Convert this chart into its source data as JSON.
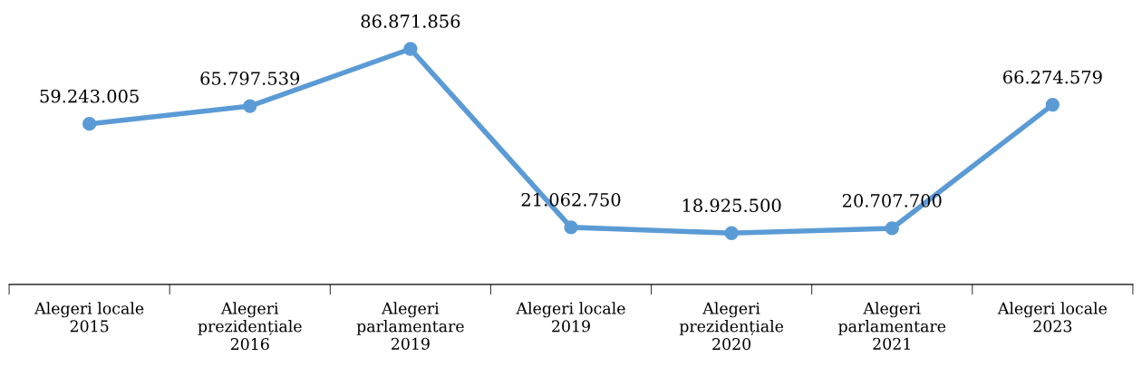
{
  "chart_data": {
    "type": "line",
    "categories": [
      "Alegeri locale\n2015",
      "Alegeri\nprezidențiale\n2016",
      "Alegeri\nparlamentare\n2019",
      "Alegeri locale\n2019",
      "Alegeri\nprezidențiale\n2020",
      "Alegeri\nparlamentare\n2021",
      "Alegeri locale\n2023"
    ],
    "series": [
      {
        "color": "#5b9bd5",
        "values": [
          59243005,
          65797539,
          86871856,
          21062750,
          18925500,
          20707700,
          66274579
        ],
        "value_labels": [
          "59.243.005",
          "65.797.539",
          "86.871.856",
          "21.062.750",
          "18.925.500",
          "20.707.700",
          "66.274.579"
        ]
      }
    ],
    "marker": "circle",
    "line_style": "solid",
    "grid": false,
    "legend": false,
    "tick_labels": "x"
  }
}
